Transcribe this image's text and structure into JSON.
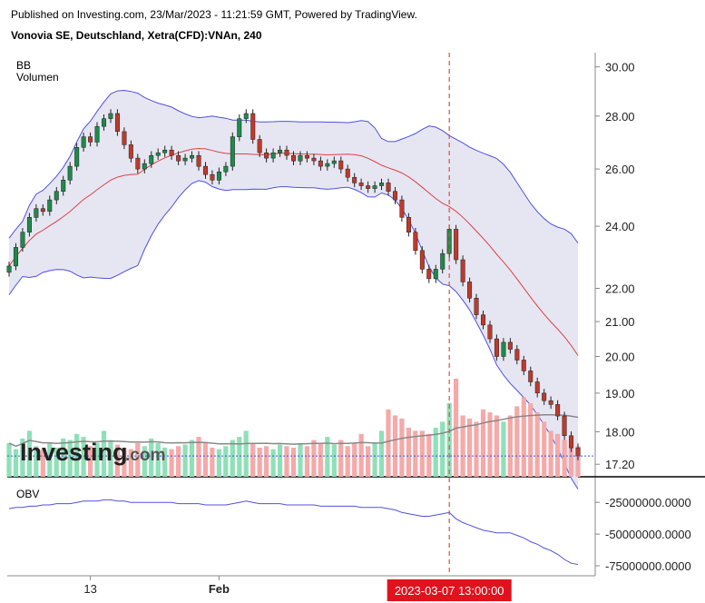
{
  "header": {
    "publisher": "Published on Investing.com, 23/Mar/2023 - 11:21:59 GMT, Powered by TradingView.",
    "symbol": "Vonovia SE, Deutschland, Xetra(CFD):VNAn, 240"
  },
  "indicators": {
    "bb": "BB",
    "volume": "Volumen",
    "obv": "OBV"
  },
  "logo": {
    "main": "Investing",
    "suffix": ".com"
  },
  "colors": {
    "up": "#1e8a4a",
    "down": "#c0392b",
    "band": "#5050e0",
    "band_fill": "#e6e6f3",
    "mid": "#e04040",
    "vol_up": "#8fe0b8",
    "vol_down": "#f5a9a9",
    "obv": "#5050e0",
    "marker": "#e74c3c",
    "vol_ma": "#888888",
    "last": "#3a5fcd"
  },
  "chart_data": {
    "type": "candlestick",
    "price_axis": {
      "ticks": [
        30.0,
        28.0,
        26.0,
        24.0,
        22.0,
        21.0,
        20.0,
        19.0,
        18.0,
        17.2
      ],
      "ylim": [
        16.9,
        30.6
      ],
      "scale": "log"
    },
    "obv_axis": {
      "ticks": [
        -25000000,
        -50000000,
        -75000000
      ],
      "tick_labels": [
        "-25000000.0000",
        "-50000000.0000",
        "-75000000.0000"
      ],
      "ylim": [
        -80000000,
        -12000000
      ]
    },
    "x_axis": {
      "labels": [
        {
          "text": "13",
          "index": 12
        },
        {
          "text": "Feb",
          "index": 31
        }
      ]
    },
    "marker": {
      "label": "2023-03-07 13:00:00",
      "index": 65
    },
    "last_price": 17.4,
    "closes": [
      22.7,
      23.3,
      23.8,
      24.3,
      24.6,
      24.5,
      24.9,
      25.2,
      25.6,
      26.1,
      26.8,
      27.2,
      27.0,
      27.6,
      27.9,
      28.1,
      27.4,
      26.9,
      26.4,
      26.0,
      26.2,
      26.5,
      26.6,
      26.7,
      26.5,
      26.3,
      26.4,
      26.5,
      26.1,
      25.8,
      25.6,
      25.9,
      26.1,
      27.2,
      27.9,
      28.1,
      27.1,
      26.6,
      26.4,
      26.6,
      26.7,
      26.5,
      26.3,
      26.5,
      26.4,
      26.3,
      26.1,
      26.2,
      26.3,
      26.0,
      25.7,
      25.5,
      25.4,
      25.3,
      25.4,
      25.5,
      25.2,
      24.9,
      24.3,
      23.8,
      23.2,
      22.6,
      22.3,
      22.6,
      23.1,
      23.9,
      22.9,
      22.2,
      21.7,
      21.2,
      20.9,
      20.5,
      20.0,
      20.4,
      20.2,
      19.9,
      19.6,
      19.3,
      19.0,
      18.8,
      18.7,
      18.4,
      17.9,
      17.6,
      17.4
    ],
    "volumes": [
      22,
      18,
      25,
      30,
      20,
      18,
      22,
      19,
      25,
      24,
      28,
      26,
      20,
      22,
      30,
      24,
      21,
      19,
      18,
      22,
      20,
      25,
      22,
      19,
      18,
      20,
      21,
      24,
      26,
      22,
      19,
      18,
      20,
      24,
      26,
      30,
      22,
      19,
      20,
      18,
      21,
      20,
      19,
      22,
      20,
      24,
      22,
      26,
      21,
      24,
      20,
      22,
      28,
      20,
      22,
      30,
      44,
      40,
      38,
      32,
      30,
      30,
      28,
      32,
      36,
      48,
      64,
      40,
      38,
      36,
      44,
      42,
      40,
      36,
      40,
      46,
      52,
      48,
      42,
      36,
      30,
      28,
      24,
      22,
      20
    ],
    "obv": [
      -30,
      -29,
      -29,
      -28,
      -28,
      -27,
      -27,
      -26,
      -26,
      -26,
      -25,
      -24,
      -24,
      -24,
      -23,
      -23,
      -24,
      -24,
      -25,
      -25,
      -25,
      -25,
      -25,
      -25,
      -25,
      -26,
      -26,
      -26,
      -26,
      -27,
      -27,
      -27,
      -27,
      -26,
      -25,
      -24,
      -25,
      -26,
      -26,
      -26,
      -26,
      -27,
      -27,
      -27,
      -27,
      -27,
      -28,
      -28,
      -28,
      -28,
      -28,
      -28,
      -29,
      -29,
      -29,
      -29,
      -30,
      -31,
      -33,
      -34,
      -35,
      -36,
      -36,
      -35,
      -34,
      -33,
      -38,
      -41,
      -43,
      -45,
      -47,
      -48,
      -49,
      -49,
      -49,
      -51,
      -53,
      -56,
      -58,
      -61,
      -63,
      -66,
      -70,
      -73,
      -74
    ]
  }
}
